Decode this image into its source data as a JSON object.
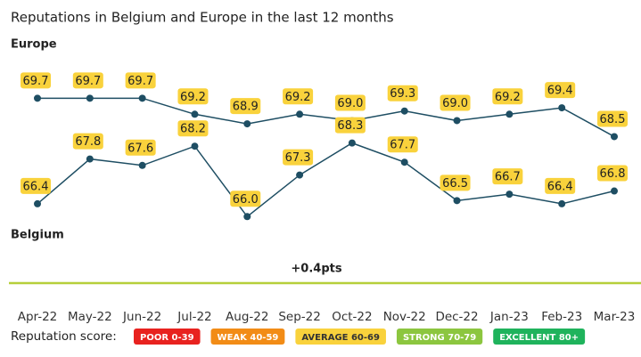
{
  "chart_data": {
    "type": "line",
    "title": "Reputations in Belgium and Europe in the last 12 months",
    "categories": [
      "Apr-22",
      "May-22",
      "Jun-22",
      "Jul-22",
      "Aug-22",
      "Sep-22",
      "Oct-22",
      "Nov-22",
      "Dec-22",
      "Jan-23",
      "Feb-23",
      "Mar-23"
    ],
    "series": [
      {
        "name": "Europe",
        "color": "#1e4e63",
        "label_color": "#5bc3d3",
        "values": [
          69.7,
          69.7,
          69.7,
          69.2,
          68.9,
          69.2,
          69.0,
          69.3,
          69.0,
          69.2,
          69.4,
          68.5
        ],
        "value_labels": [
          "69.7",
          "69.7",
          "69.7",
          "69.2",
          "68.9",
          "69.2",
          "69.0",
          "69.3",
          "69.0",
          "69.2",
          "69.4",
          "68.5"
        ]
      },
      {
        "name": "Belgium",
        "color": "#1e4e63",
        "label_color": "#b6cf3a",
        "values": [
          66.4,
          67.8,
          67.6,
          68.2,
          66.0,
          67.3,
          68.3,
          67.7,
          66.5,
          66.7,
          66.4,
          66.8
        ],
        "value_labels": [
          "66.4",
          "67.8",
          "67.6",
          "68.2",
          "66.0",
          "67.3",
          "68.3",
          "67.7",
          "66.5",
          "66.7",
          "66.4",
          "66.8"
        ]
      }
    ],
    "ylim": [
      64.7,
      71.1
    ],
    "value_label_color": "#f9d23c",
    "annotation": "+0.4pts",
    "annotation_color": "#b6cf3a",
    "legend": {
      "title": "Reputation score:",
      "items": [
        {
          "label": "POOR 0-39",
          "color": "#e8221f"
        },
        {
          "label": "WEAK 40-59",
          "color": "#f28c16"
        },
        {
          "label": "AVERAGE 60-69",
          "color": "#f9d23c"
        },
        {
          "label": "STRONG 70-79",
          "color": "#8cc63f"
        },
        {
          "label": "EXCELLENT 80+",
          "color": "#1fb35c"
        }
      ]
    }
  }
}
